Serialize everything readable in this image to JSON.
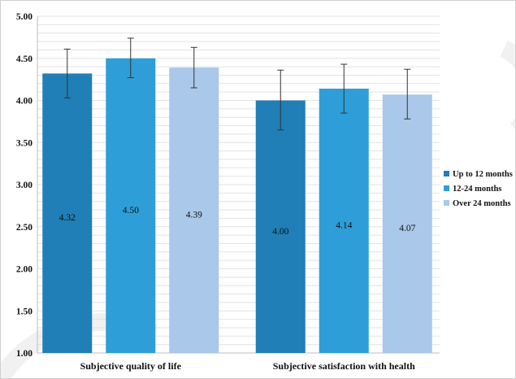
{
  "chart_data": {
    "type": "bar",
    "categories": [
      "Subjective quality of life",
      "Subjective satisfaction with health"
    ],
    "series": [
      {
        "name": "Up to 12 months",
        "color": "#1f7fb6",
        "values": [
          4.32,
          4.0
        ],
        "error_low": [
          4.03,
          3.65
        ],
        "error_high": [
          4.61,
          4.36
        ]
      },
      {
        "name": "12-24 months",
        "color": "#2e9ed9",
        "values": [
          4.5,
          4.14
        ],
        "error_low": [
          4.27,
          3.85
        ],
        "error_high": [
          4.74,
          4.43
        ]
      },
      {
        "name": "Over 24 months",
        "color": "#a9c8ea",
        "values": [
          4.39,
          4.07
        ],
        "error_low": [
          4.15,
          3.78
        ],
        "error_high": [
          4.63,
          4.37
        ]
      }
    ],
    "data_labels": [
      [
        "4.32",
        "4.00"
      ],
      [
        "4.50",
        "4.14"
      ],
      [
        "4.39",
        "4.07"
      ]
    ],
    "y_ticks": [
      "1.00",
      "1.50",
      "2.00",
      "2.50",
      "3.00",
      "3.50",
      "4.00",
      "4.50",
      "5.00"
    ],
    "ylim": [
      1.0,
      5.0
    ],
    "grid": true,
    "legend_position": "right",
    "title": "",
    "xlabel": "",
    "ylabel": ""
  }
}
